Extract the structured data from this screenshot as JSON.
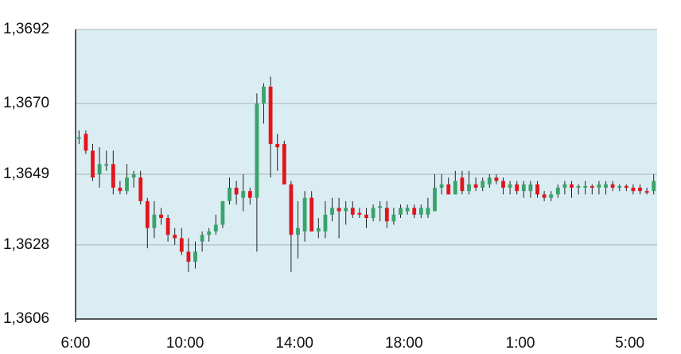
{
  "chart_data": {
    "type": "candlestick",
    "categories": [
      "6:00",
      null,
      null,
      null,
      null,
      null,
      null,
      null,
      null,
      null,
      null,
      null,
      null,
      null,
      null,
      null,
      "10:00",
      null,
      null,
      null,
      null,
      null,
      null,
      null,
      null,
      null,
      null,
      null,
      null,
      null,
      null,
      null,
      "14:00",
      null,
      null,
      null,
      null,
      null,
      null,
      null,
      null,
      null,
      null,
      null,
      null,
      null,
      null,
      null,
      "18:00",
      null,
      null,
      null,
      null,
      null,
      null,
      null,
      null,
      null,
      null,
      null,
      null,
      null,
      null,
      null,
      null,
      "1:00",
      null,
      null,
      null,
      null,
      null,
      null,
      null,
      null,
      null,
      null,
      null,
      null,
      null,
      null,
      null,
      "5:00",
      null,
      null,
      null
    ],
    "open": [
      1.36595,
      1.3661,
      1.3656,
      1.3649,
      1.36515,
      1.3652,
      1.3645,
      1.3644,
      1.3648,
      1.3648,
      1.3641,
      1.3633,
      1.3637,
      1.3636,
      1.3631,
      1.363,
      1.3626,
      1.3623,
      1.3629,
      1.3631,
      1.3632,
      1.3634,
      1.3641,
      1.3645,
      1.3642,
      1.3644,
      1.3642,
      1.367,
      1.3675,
      1.3658,
      1.3658,
      1.3646,
      1.3631,
      1.3632,
      1.3642,
      1.3632,
      1.3632,
      1.3637,
      1.3639,
      1.3638,
      1.3639,
      1.36375,
      1.3637,
      1.3636,
      1.3639,
      1.3639,
      1.3635,
      1.3637,
      1.3638,
      1.3639,
      1.3637,
      1.3637,
      1.3638,
      1.3645,
      1.3646,
      1.3643,
      1.3648,
      1.3644,
      1.3646,
      1.3645,
      1.3646,
      1.3648,
      1.3647,
      1.3645,
      1.3646,
      1.3644,
      1.3644,
      1.3646,
      1.3643,
      1.3642,
      1.3643,
      1.3645,
      1.3646,
      1.3645,
      1.3645,
      1.36455,
      1.3645,
      1.3645,
      1.3646,
      1.3645,
      1.36455,
      1.3645,
      1.3645,
      1.3644,
      1.3644
    ],
    "high": [
      1.3662,
      1.3662,
      1.3658,
      1.3657,
      1.3656,
      1.3656,
      1.3647,
      1.3652,
      1.365,
      1.365,
      1.3642,
      1.3641,
      1.3639,
      1.3637,
      1.3633,
      1.3633,
      1.363,
      1.3629,
      1.3632,
      1.3633,
      1.3637,
      1.3641,
      1.3648,
      1.3647,
      1.3649,
      1.3645,
      1.3673,
      1.3676,
      1.3678,
      1.3661,
      1.3659,
      1.3647,
      1.3641,
      1.3644,
      1.3644,
      1.3636,
      1.3641,
      1.3642,
      1.3642,
      1.3641,
      1.3641,
      1.3639,
      1.3639,
      1.364,
      1.3641,
      1.3641,
      1.3639,
      1.364,
      1.364,
      1.364,
      1.364,
      1.3642,
      1.3649,
      1.3649,
      1.3648,
      1.365,
      1.365,
      1.365,
      1.3648,
      1.3648,
      1.3649,
      1.3649,
      1.3648,
      1.3647,
      1.3647,
      1.3647,
      1.3647,
      1.3647,
      1.3644,
      1.3644,
      1.3646,
      1.3647,
      1.3647,
      1.3646,
      1.3647,
      1.3646,
      1.3647,
      1.3647,
      1.3647,
      1.3646,
      1.3646,
      1.3646,
      1.3646,
      1.3645,
      1.3649
    ],
    "low": [
      1.3658,
      1.3655,
      1.3647,
      1.3645,
      1.365,
      1.3643,
      1.3643,
      1.3643,
      1.3645,
      1.364,
      1.3627,
      1.363,
      1.3634,
      1.3629,
      1.3628,
      1.3625,
      1.362,
      1.3621,
      1.3626,
      1.3629,
      1.3631,
      1.3633,
      1.364,
      1.364,
      1.3638,
      1.364,
      1.3626,
      1.3664,
      1.3648,
      1.365,
      1.3646,
      1.362,
      1.3624,
      1.3629,
      1.3632,
      1.363,
      1.363,
      1.3635,
      1.363,
      1.3634,
      1.3636,
      1.3636,
      1.3633,
      1.3635,
      1.3635,
      1.3633,
      1.3634,
      1.3636,
      1.3637,
      1.3636,
      1.3636,
      1.3636,
      1.3638,
      1.3643,
      1.3643,
      1.3643,
      1.3643,
      1.3643,
      1.3644,
      1.3644,
      1.3645,
      1.3646,
      1.3643,
      1.3643,
      1.3643,
      1.3642,
      1.3642,
      1.3642,
      1.3641,
      1.3641,
      1.3642,
      1.3643,
      1.3642,
      1.3643,
      1.3643,
      1.3643,
      1.3643,
      1.3643,
      1.3644,
      1.3644,
      1.3644,
      1.3643,
      1.3643,
      1.3643,
      1.3643
    ],
    "close": [
      1.366,
      1.3656,
      1.3648,
      1.3652,
      1.3652,
      1.3645,
      1.3644,
      1.3648,
      1.3649,
      1.3641,
      1.3633,
      1.3637,
      1.3636,
      1.3631,
      1.363,
      1.3626,
      1.3623,
      1.3626,
      1.3631,
      1.3632,
      1.3634,
      1.3641,
      1.3645,
      1.3643,
      1.3644,
      1.3642,
      1.367,
      1.3675,
      1.3658,
      1.3657,
      1.3646,
      1.3631,
      1.3633,
      1.3642,
      1.3632,
      1.3633,
      1.3637,
      1.3639,
      1.3638,
      1.3639,
      1.3637,
      1.3637,
      1.3636,
      1.3639,
      1.36395,
      1.3635,
      1.3637,
      1.3639,
      1.3639,
      1.3637,
      1.3639,
      1.3639,
      1.3645,
      1.3646,
      1.3643,
      1.3647,
      1.3644,
      1.3646,
      1.3645,
      1.3647,
      1.3648,
      1.3647,
      1.3645,
      1.3646,
      1.3644,
      1.3646,
      1.3646,
      1.3643,
      1.3642,
      1.3643,
      1.3645,
      1.3646,
      1.3645,
      1.36455,
      1.36455,
      1.3645,
      1.3646,
      1.3646,
      1.3645,
      1.36455,
      1.3645,
      1.3644,
      1.3644,
      1.36435,
      1.3647
    ],
    "up_color": "#3aa36b",
    "down_color": "#e3141c",
    "background": "#daedf3",
    "ylim": [
      1.3606,
      1.3692
    ],
    "yticks": [
      {
        "value": 1.3606,
        "label": "1,3606"
      },
      {
        "value": 1.3628,
        "label": "1,3628"
      },
      {
        "value": 1.3649,
        "label": "1,3649"
      },
      {
        "value": 1.367,
        "label": "1,3670"
      },
      {
        "value": 1.3692,
        "label": "1,3692"
      }
    ],
    "grid": true
  }
}
